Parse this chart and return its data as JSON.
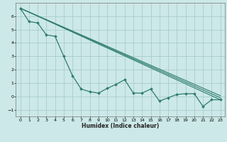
{
  "title": "",
  "xlabel": "Humidex (Indice chaleur)",
  "xlim": [
    -0.5,
    23.5
  ],
  "ylim": [
    -1.5,
    7.0
  ],
  "yticks": [
    -1,
    0,
    1,
    2,
    3,
    4,
    5,
    6
  ],
  "xticks": [
    0,
    1,
    2,
    3,
    4,
    5,
    6,
    7,
    8,
    9,
    10,
    11,
    12,
    13,
    14,
    15,
    16,
    17,
    18,
    19,
    20,
    21,
    22,
    23
  ],
  "bg_color": "#cce8e8",
  "grid_color": "#aacccc",
  "line_color": "#2e7d6e",
  "main_line": {
    "x": [
      0,
      1,
      2,
      3,
      4,
      5,
      6,
      7,
      8,
      9,
      10,
      11,
      12,
      13,
      14,
      15,
      16,
      17,
      18,
      19,
      20,
      21,
      22,
      23
    ],
    "y": [
      6.6,
      5.6,
      5.5,
      4.6,
      4.5,
      3.0,
      1.55,
      0.55,
      0.35,
      0.25,
      0.6,
      0.9,
      1.25,
      0.25,
      0.25,
      0.55,
      -0.35,
      -0.1,
      0.15,
      0.2,
      0.2,
      -0.75,
      -0.25,
      -0.25
    ]
  },
  "straight_lines": [
    {
      "x": [
        0,
        23
      ],
      "y": [
        6.6,
        -0.25
      ]
    },
    {
      "x": [
        0,
        23
      ],
      "y": [
        6.6,
        -0.1
      ]
    },
    {
      "x": [
        0,
        23
      ],
      "y": [
        6.6,
        0.05
      ]
    }
  ]
}
